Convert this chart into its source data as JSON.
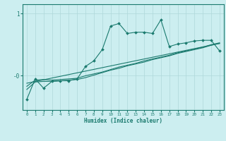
{
  "xlabel": "Humidex (Indice chaleur)",
  "background_color": "#cceef0",
  "plot_color": "#1a7a6e",
  "grid_color": "#aed8da",
  "x_min": 0,
  "x_max": 23,
  "y_min": -0.55,
  "y_max": 1.15,
  "line1_x": [
    0,
    1,
    2,
    3,
    4,
    5,
    6,
    7,
    8,
    9,
    10,
    11,
    12,
    13,
    14,
    15,
    16,
    17,
    18,
    19,
    20,
    21,
    22,
    23
  ],
  "line1_y": [
    -0.38,
    -0.05,
    -0.2,
    -0.09,
    -0.08,
    -0.08,
    -0.05,
    0.15,
    0.24,
    0.42,
    0.8,
    0.84,
    0.68,
    0.7,
    0.7,
    0.68,
    0.9,
    0.47,
    0.51,
    0.53,
    0.56,
    0.57,
    0.57,
    0.4
  ],
  "line2_x": [
    0,
    1,
    2,
    3,
    4,
    5,
    6,
    7,
    8,
    9,
    10,
    11,
    12,
    13,
    14,
    15,
    16,
    17,
    18,
    19,
    20,
    21,
    22,
    23
  ],
  "line2_y": [
    -0.22,
    -0.1,
    -0.09,
    -0.09,
    -0.08,
    -0.07,
    -0.06,
    -0.03,
    0.01,
    0.05,
    0.09,
    0.12,
    0.16,
    0.19,
    0.22,
    0.26,
    0.29,
    0.32,
    0.36,
    0.39,
    0.42,
    0.45,
    0.49,
    0.52
  ],
  "line3_x": [
    0,
    1,
    2,
    3,
    4,
    5,
    6,
    7,
    8,
    9,
    10,
    11,
    12,
    13,
    14,
    15,
    16,
    17,
    18,
    19,
    20,
    21,
    22,
    23
  ],
  "line3_y": [
    -0.17,
    -0.07,
    -0.06,
    -0.07,
    -0.06,
    -0.05,
    -0.04,
    0.0,
    0.03,
    0.06,
    0.1,
    0.14,
    0.17,
    0.2,
    0.24,
    0.27,
    0.3,
    0.33,
    0.37,
    0.4,
    0.43,
    0.46,
    0.5,
    0.53
  ],
  "line4_x": [
    0,
    23
  ],
  "line4_y": [
    -0.12,
    0.52
  ]
}
